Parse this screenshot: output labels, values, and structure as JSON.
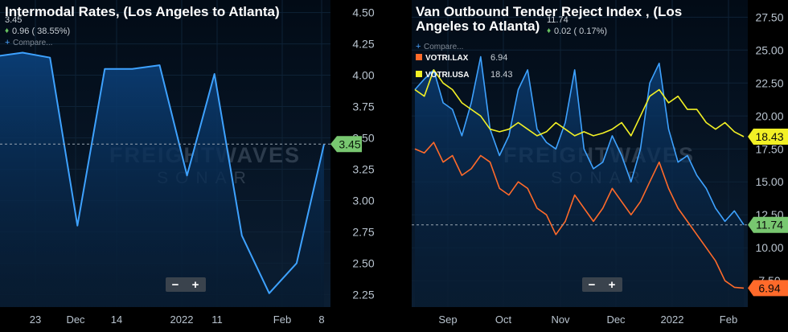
{
  "colors": {
    "background": "#04111f",
    "grid": "#0e2236",
    "axis_text": "#b9c4cf",
    "blue_line": "#3ea2ff",
    "orange_line": "#ff6a2a",
    "yellow_line": "#f2f025",
    "green_badge": "#78c770",
    "up_arrow": "#67c160",
    "watermark": "#2c3b4c"
  },
  "watermark": {
    "line1": "FREIGHTWAVES",
    "line2": "SONAR"
  },
  "zoom_controls": {
    "minus": "−",
    "plus": "+"
  },
  "chart_data": [
    {
      "type": "area",
      "title": "Intermodal Rates, (Los Angeles to Atlanta)",
      "header": {
        "value": "3.45",
        "change": "0.96 ( 38.55%)",
        "compare_label": "Compare..."
      },
      "y_ticks": [
        "4.50",
        "4.25",
        "4.00",
        "3.75",
        "3.50",
        "3.25",
        "3.00",
        "2.75",
        "2.50",
        "2.25"
      ],
      "x_ticks": [
        "23",
        "Dec",
        "14",
        "2022",
        "11",
        "Feb",
        "8"
      ],
      "ylim": [
        2.15,
        4.6
      ],
      "grid": true,
      "last_value_badge": "3.45",
      "series": [
        {
          "values": [
            4.15,
            4.18,
            4.14,
            2.8,
            4.05,
            4.05,
            4.08,
            3.2,
            4.01,
            2.72,
            2.26,
            2.5,
            3.45
          ]
        }
      ]
    },
    {
      "type": "line",
      "title": "Van Outbound Tender Reject Index , (Los Angeles to Atlanta)",
      "header": {
        "value": "11.74",
        "change": "0.02 ( 0.17%)",
        "compare_label": "Compare..."
      },
      "legend": [
        {
          "name": "VOTRI.LAX",
          "value": "6.94",
          "color": "#ff6a2a"
        },
        {
          "name": "VOTRI.USA",
          "value": "18.43",
          "color": "#f2f025"
        }
      ],
      "legend_placement": "top-left",
      "y_ticks": [
        "27.50",
        "25.00",
        "22.50",
        "20.00",
        "17.50",
        "15.00",
        "12.50",
        "10.00",
        "7.50"
      ],
      "x_ticks": [
        "Sep",
        "Oct",
        "Nov",
        "Dec",
        "2022",
        "Feb"
      ],
      "ylim": [
        5.5,
        28.8
      ],
      "grid": true,
      "last_value_badges": [
        "18.43",
        "11.74",
        "6.94"
      ],
      "series": [
        {
          "values": [
            22.0,
            22.8,
            23.5,
            21.0,
            20.5,
            18.5,
            21.0,
            24.5,
            19.0,
            17.0,
            18.5,
            22.0,
            23.5,
            19.0,
            18.0,
            17.5,
            19.5,
            23.5,
            17.5,
            16.0,
            16.5,
            18.5,
            17.0,
            15.0,
            17.5,
            22.5,
            24.0,
            19.0,
            16.5,
            17.0,
            15.5,
            14.5,
            13.0,
            12.0,
            12.8,
            11.74
          ]
        },
        {
          "values": [
            17.5,
            17.2,
            18.0,
            16.5,
            17.0,
            15.5,
            16.0,
            17.0,
            16.5,
            14.5,
            14.0,
            15.0,
            14.5,
            13.0,
            12.5,
            11.0,
            12.0,
            14.0,
            13.0,
            12.0,
            13.0,
            14.5,
            13.5,
            12.5,
            13.5,
            15.0,
            16.5,
            14.5,
            13.0,
            12.0,
            11.0,
            10.0,
            9.0,
            7.5,
            7.0,
            6.94
          ]
        },
        {
          "values": [
            22.0,
            21.5,
            23.5,
            22.5,
            22.0,
            21.0,
            20.5,
            20.0,
            19.0,
            18.8,
            19.0,
            19.5,
            19.0,
            18.5,
            18.8,
            19.5,
            19.0,
            18.5,
            18.8,
            18.5,
            18.7,
            19.0,
            19.5,
            18.5,
            20.0,
            21.5,
            22.0,
            21.0,
            21.5,
            20.5,
            20.5,
            19.5,
            19.0,
            19.5,
            18.8,
            18.43
          ]
        }
      ]
    }
  ]
}
